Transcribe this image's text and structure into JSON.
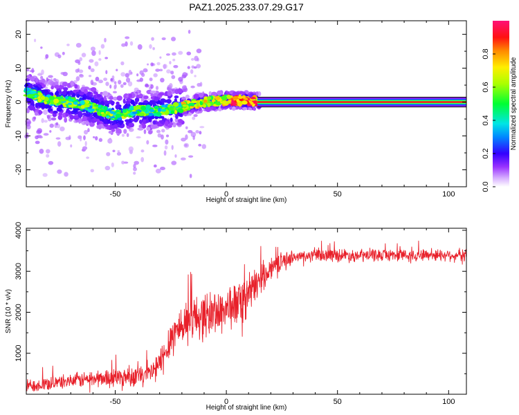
{
  "page": {
    "title": "PAZ1.2025.233.07.29.G17"
  },
  "colors": {
    "snr_line": "#e8202a",
    "axis": "#000000",
    "background": "#ffffff"
  },
  "chart_data": [
    {
      "type": "heatmap",
      "title": "PAZ1.2025.233.07.29.G17",
      "xlabel": "Height of straight line (km)",
      "ylabel": "Frequency (Hz)",
      "xlim": [
        -90,
        108
      ],
      "ylim": [
        -25,
        24
      ],
      "x_ticks": [
        -50,
        0,
        50,
        100
      ],
      "y_ticks": [
        -20,
        -10,
        0,
        10,
        20
      ],
      "grid": false,
      "colorbar": {
        "label": "Normalized spectral amplitude",
        "range": [
          0,
          1
        ],
        "ticks": [
          0.0,
          0.2,
          0.4,
          0.6,
          0.8
        ],
        "tick_labels": [
          "0.0",
          "0.2",
          "0.4",
          "0.6",
          "0.8"
        ],
        "colormap": "rainbow (violet to magenta-red)"
      },
      "ridge": {
        "description": "peak frequency vs height",
        "x": [
          -90,
          -80,
          -70,
          -60,
          -50,
          -40,
          -30,
          -20,
          -10,
          0,
          10,
          15,
          20,
          50,
          100,
          108
        ],
        "y": [
          3.0,
          0.5,
          0.0,
          -1.5,
          -4.0,
          -2.5,
          -2.5,
          -1.5,
          0.0,
          0.5,
          0.5,
          0.0,
          0.0,
          0.0,
          0.0,
          0.0
        ]
      }
    },
    {
      "type": "line",
      "xlabel": "Height of straight line (km)",
      "ylabel": "SNR (10 * v/v)",
      "xlim": [
        -90,
        108
      ],
      "ylim": [
        0,
        4050
      ],
      "x_ticks": [
        -50,
        0,
        50,
        100
      ],
      "y_ticks": [
        1000,
        2000,
        3000,
        4000
      ],
      "grid": false,
      "series": [
        {
          "trend_x": [
            -90,
            -75,
            -60,
            -45,
            -35,
            -30,
            -25,
            -20,
            -15,
            -10,
            -5,
            0,
            5,
            10,
            15,
            20,
            25,
            30,
            40,
            50,
            60,
            70,
            80,
            90,
            100,
            108
          ],
          "trend_y": [
            200,
            300,
            380,
            430,
            480,
            700,
            1400,
            1700,
            1900,
            1900,
            2000,
            2100,
            2200,
            2400,
            2800,
            3100,
            3250,
            3350,
            3380,
            3400,
            3380,
            3400,
            3400,
            3400,
            3400,
            3400
          ],
          "noise_y": [
            200,
            200,
            250,
            300,
            300,
            500,
            600,
            650,
            650,
            700,
            700,
            700,
            650,
            600,
            450,
            350,
            250,
            200,
            180,
            200,
            200,
            180,
            180,
            180,
            180,
            180
          ]
        }
      ]
    }
  ]
}
